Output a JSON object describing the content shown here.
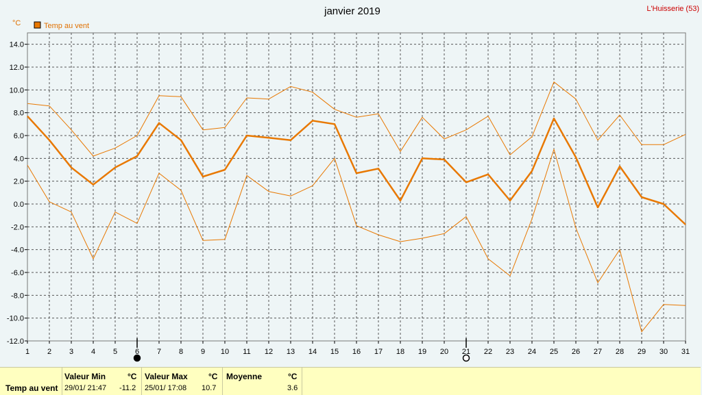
{
  "title": "janvier 2019",
  "location": "L'Huisserie (53)",
  "unit": "°C",
  "legend": {
    "label": "Temp au vent",
    "color": "#e87800"
  },
  "chart_data": {
    "type": "line",
    "title": "janvier 2019",
    "ylabel": "°C",
    "xlabel": "",
    "ylim": [
      -12.0,
      15.0
    ],
    "yticks": [
      "14.0",
      "12.0",
      "10.0",
      "8.0",
      "6.0",
      "4.0",
      "2.0",
      "0.0",
      "-2.0",
      "-4.0",
      "-6.0",
      "-8.0",
      "-10.0",
      "-12.0"
    ],
    "x": [
      1,
      2,
      3,
      4,
      5,
      6,
      7,
      8,
      9,
      10,
      11,
      12,
      13,
      14,
      15,
      16,
      17,
      18,
      19,
      20,
      21,
      22,
      23,
      24,
      25,
      26,
      27,
      28,
      29,
      30,
      31
    ],
    "grid": true,
    "legend_position": "top-left",
    "markers": [
      {
        "day": 6,
        "symbol": "full-moon"
      },
      {
        "day": 21,
        "symbol": "new-moon"
      }
    ],
    "series": [
      {
        "name": "Temp au vent",
        "role": "mean",
        "values": [
          7.7,
          5.6,
          3.2,
          1.7,
          3.2,
          4.2,
          7.1,
          5.6,
          2.4,
          3.0,
          6.0,
          5.8,
          5.6,
          7.3,
          7.0,
          2.7,
          3.1,
          0.3,
          4.0,
          3.9,
          1.9,
          2.6,
          0.3,
          2.9,
          7.5,
          4.1,
          -0.3,
          3.3,
          0.6,
          0.0,
          -1.8
        ]
      },
      {
        "role": "max",
        "values": [
          8.8,
          8.6,
          6.5,
          4.2,
          4.9,
          6.0,
          9.5,
          9.4,
          6.5,
          6.7,
          9.3,
          9.2,
          10.3,
          9.8,
          8.3,
          7.6,
          7.9,
          4.6,
          7.6,
          5.7,
          6.5,
          7.7,
          4.3,
          5.9,
          10.7,
          9.2,
          5.6,
          7.8,
          5.2,
          5.2,
          6.1
        ]
      },
      {
        "role": "min",
        "values": [
          3.4,
          0.2,
          -0.7,
          -4.8,
          -0.7,
          -1.7,
          2.7,
          1.2,
          -3.2,
          -3.1,
          2.5,
          1.1,
          0.7,
          1.6,
          4.0,
          -1.9,
          -2.7,
          -3.3,
          -3.0,
          -2.6,
          -1.1,
          -4.8,
          -6.3,
          -1.3,
          4.8,
          -2.1,
          -6.9,
          -4.0,
          -11.2,
          -8.8,
          -8.9
        ]
      }
    ]
  },
  "stats": {
    "row_label": "Temp au vent",
    "min": {
      "header": "Valeur Min",
      "unit": "°C",
      "date": "29/01/  21:47",
      "value": "-11.2"
    },
    "max": {
      "header": "Valeur Max",
      "unit": "°C",
      "date": "25/01/  17:08",
      "value": "10.7"
    },
    "mean": {
      "header": "Moyenne",
      "unit": "°C",
      "value": "3.6"
    }
  }
}
